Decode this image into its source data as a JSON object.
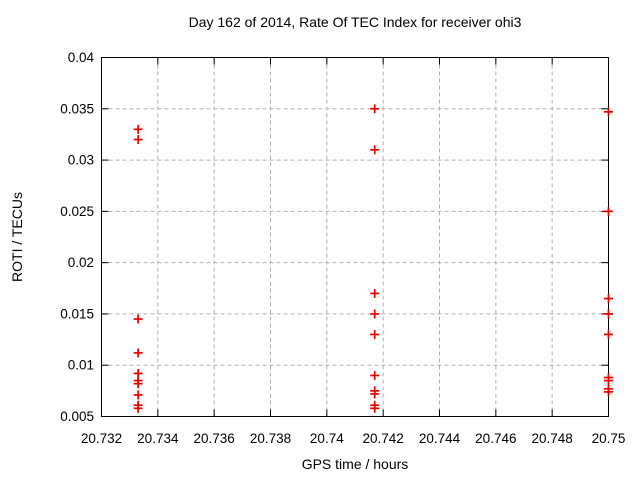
{
  "window": {
    "background": "#ffffff"
  },
  "chart_data": {
    "type": "scatter",
    "title": "Day 162 of 2014, Rate Of TEC Index for receiver ohi3",
    "xlabel": "GPS time / hours",
    "ylabel": "ROTI / TECUs",
    "xlim": [
      20.732,
      20.75
    ],
    "ylim": [
      0.005,
      0.04
    ],
    "xticks": {
      "values": [
        20.732,
        20.734,
        20.736,
        20.738,
        20.74,
        20.742,
        20.744,
        20.746,
        20.748,
        20.75
      ],
      "labels": [
        "20.732",
        "20.734",
        "20.736",
        "20.738",
        "20.74",
        "20.742",
        "20.744",
        "20.746",
        "20.748",
        "20.75"
      ]
    },
    "yticks": {
      "values": [
        0.005,
        0.01,
        0.015,
        0.02,
        0.025,
        0.03,
        0.035,
        0.04
      ],
      "labels": [
        "0.005",
        "0.01",
        "0.015",
        "0.02",
        "0.025",
        "0.03",
        "0.035",
        "0.04"
      ]
    },
    "grid": "dashed",
    "legend": "none",
    "marker": {
      "shape": "plus",
      "color": "#e60000",
      "size": 9,
      "stroke_width": 1.7
    },
    "colors": {
      "axis": "#000000",
      "grid": "#b0b0b0",
      "text": "#000000"
    },
    "series": [
      {
        "name": "ROTI",
        "points": [
          [
            20.7333,
            0.033
          ],
          [
            20.7333,
            0.032
          ],
          [
            20.7333,
            0.0145
          ],
          [
            20.7333,
            0.0112
          ],
          [
            20.7333,
            0.0092
          ],
          [
            20.7333,
            0.0085
          ],
          [
            20.7333,
            0.0082
          ],
          [
            20.7333,
            0.0071
          ],
          [
            20.7333,
            0.0061
          ],
          [
            20.7333,
            0.0058
          ],
          [
            20.7417,
            0.035
          ],
          [
            20.7417,
            0.031
          ],
          [
            20.7417,
            0.017
          ],
          [
            20.7417,
            0.015
          ],
          [
            20.7417,
            0.013
          ],
          [
            20.7417,
            0.009
          ],
          [
            20.7417,
            0.0075
          ],
          [
            20.7417,
            0.0072
          ],
          [
            20.7417,
            0.0061
          ],
          [
            20.7417,
            0.0058
          ],
          [
            20.75,
            0.0347
          ],
          [
            20.75,
            0.025
          ],
          [
            20.75,
            0.0165
          ],
          [
            20.75,
            0.015
          ],
          [
            20.75,
            0.013
          ],
          [
            20.75,
            0.0088
          ],
          [
            20.75,
            0.0085
          ],
          [
            20.75,
            0.0077
          ],
          [
            20.75,
            0.0074
          ]
        ]
      }
    ]
  }
}
